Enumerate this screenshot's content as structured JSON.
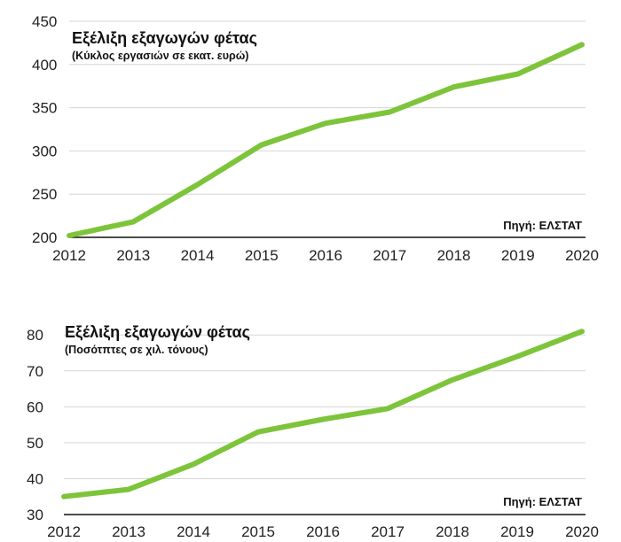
{
  "chart_data": [
    {
      "type": "line",
      "title": "Εξέλιξη εξαγωγών φέτας",
      "subtitle": "(Κύκλος εργασιών σε εκατ. ευρώ)",
      "source": "Πηγή: ΕΛΣΤΑΤ",
      "x": [
        "2012",
        "2013",
        "2014",
        "2015",
        "2016",
        "2017",
        "2018",
        "2019",
        "2020"
      ],
      "series": [
        {
          "name": "Κύκλος εργασιών",
          "values": [
            202,
            218,
            261,
            307,
            332,
            345,
            374,
            389,
            423
          ],
          "color": "#7dc43a"
        }
      ],
      "yticks": [
        "200",
        "250",
        "300",
        "350",
        "400",
        "450"
      ],
      "ylim": [
        200,
        450
      ],
      "grid": true
    },
    {
      "type": "line",
      "title": "Εξέλιξη εξαγωγών φέτας",
      "subtitle": "(Ποσότπτες σε χιλ. τόνους)",
      "source": "Πηγή: ΕΛΣΤΑΤ",
      "x": [
        "2012",
        "2013",
        "2014",
        "2015",
        "2016",
        "2017",
        "2018",
        "2019",
        "2020"
      ],
      "series": [
        {
          "name": "Ποσότητες",
          "values": [
            35,
            37,
            44,
            53,
            56.5,
            59.5,
            67.5,
            74,
            81
          ],
          "color": "#7dc43a"
        }
      ],
      "yticks": [
        "30",
        "40",
        "50",
        "60",
        "70",
        "80"
      ],
      "ylim": [
        30,
        84
      ],
      "grid": true
    }
  ]
}
